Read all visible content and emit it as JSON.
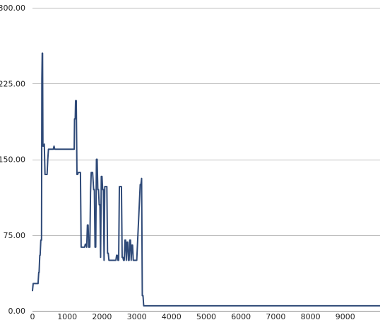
{
  "chart_data": {
    "type": "line",
    "title": "",
    "xlabel": "",
    "ylabel": "",
    "xlim": [
      0,
      10000
    ],
    "ylim": [
      0,
      300
    ],
    "x_ticks": [
      0,
      1000,
      2000,
      3000,
      4000,
      5000,
      6000,
      7000,
      8000,
      9000
    ],
    "x_tick_labels": [
      "0",
      "1000",
      "2000",
      "3000",
      "4000",
      "5000",
      "6000",
      "7000",
      "8000",
      "9000"
    ],
    "y_ticks": [
      0,
      75,
      150,
      225,
      300
    ],
    "y_tick_labels": [
      "0.00",
      "75.00",
      "150.00",
      "225.00",
      "300.00"
    ],
    "grid": true,
    "legend": "none",
    "color": "#2f4a78",
    "series": [
      {
        "x": [
          0,
          20,
          160,
          180,
          190,
          210,
          220,
          240,
          260,
          270,
          280,
          290,
          300,
          320,
          340,
          360,
          380,
          400,
          420,
          440,
          460,
          480,
          520,
          600,
          620,
          640,
          700,
          800,
          900,
          1000,
          1100,
          1150,
          1200,
          1210,
          1230,
          1240,
          1260,
          1280,
          1300,
          1320,
          1340,
          1360,
          1380,
          1400,
          1420,
          1450,
          1500,
          1520,
          1540,
          1560,
          1580,
          1600,
          1620,
          1650,
          1670,
          1690,
          1710,
          1730,
          1760,
          1780,
          1800,
          1820,
          1840,
          1860,
          1880,
          1900,
          1920,
          1940,
          1960,
          1980,
          2000,
          2020,
          2040,
          2060,
          2080,
          2100,
          2120,
          2140,
          2160,
          2180,
          2200,
          2220,
          2240,
          2260,
          2280,
          2300,
          2400,
          2420,
          2440,
          2460,
          2480,
          2500,
          2550,
          2560,
          2580,
          2600,
          2620,
          2640,
          2660,
          2680,
          2700,
          2720,
          2740,
          2760,
          2780,
          2800,
          2820,
          2840,
          2860,
          2880,
          2900,
          2920,
          2940,
          2960,
          2980,
          3000,
          3100,
          3120,
          3140,
          3160,
          3180,
          3200,
          3220,
          3240,
          3260,
          3280,
          3300,
          10000
        ],
        "y": [
          20,
          27,
          27,
          38,
          38,
          55,
          55,
          70,
          70,
          230,
          255,
          255,
          163,
          163,
          165,
          135,
          135,
          135,
          135,
          150,
          160,
          160,
          160,
          160,
          163,
          160,
          160,
          160,
          160,
          160,
          160,
          160,
          160,
          190,
          190,
          208,
          208,
          135,
          135,
          137,
          137,
          137,
          137,
          63,
          63,
          63,
          63,
          66,
          66,
          63,
          85,
          85,
          63,
          63,
          117,
          137,
          137,
          137,
          120,
          120,
          63,
          63,
          150,
          150,
          120,
          120,
          105,
          105,
          53,
          133,
          133,
          120,
          120,
          50,
          123,
          123,
          123,
          123,
          57,
          57,
          50,
          50,
          50,
          50,
          50,
          50,
          50,
          55,
          55,
          50,
          50,
          123,
          123,
          123,
          53,
          53,
          50,
          50,
          70,
          70,
          50,
          68,
          68,
          50,
          50,
          70,
          70,
          50,
          65,
          65,
          50,
          50,
          50,
          50,
          50,
          50,
          125,
          125,
          131,
          15,
          15,
          5,
          5,
          5,
          5,
          5,
          5,
          5
        ]
      }
    ]
  }
}
